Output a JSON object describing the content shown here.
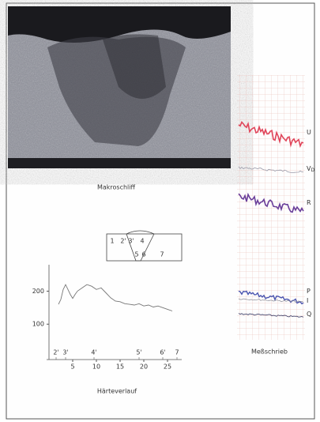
{
  "photo": {
    "caption": "Makroschliff"
  },
  "weld_sketch": {
    "labels": [
      "1",
      "2'",
      "3'",
      "4",
      "5",
      "6",
      "7"
    ]
  },
  "strip_chart": {
    "caption": "Meßschrieb",
    "channels": [
      {
        "label": "U"
      },
      {
        "label": "V",
        "sub": "D"
      },
      {
        "label": "R"
      },
      {
        "label": "P"
      },
      {
        "label": "I"
      },
      {
        "label": "Q"
      }
    ]
  },
  "chart_data": {
    "type": "line",
    "title": "Härteverlauf",
    "x": [
      2,
      2.5,
      3,
      3.5,
      4,
      4.5,
      5,
      5.5,
      6,
      7,
      8,
      9,
      10,
      11,
      12,
      13,
      14,
      15,
      16,
      17,
      18,
      19,
      20,
      21,
      22,
      23,
      24,
      25,
      26
    ],
    "values": [
      160,
      175,
      205,
      220,
      205,
      190,
      178,
      190,
      200,
      210,
      220,
      215,
      205,
      210,
      195,
      180,
      170,
      168,
      162,
      160,
      158,
      162,
      155,
      158,
      152,
      155,
      150,
      145,
      140
    ],
    "color": "#777777",
    "xlim": [
      0,
      28
    ],
    "ylim": [
      0,
      280
    ],
    "xticks": [
      5,
      10,
      15,
      20,
      25
    ],
    "yticks": [
      100,
      200
    ],
    "markers": [
      {
        "value": 1.5,
        "label": "2'"
      },
      {
        "value": 3.5,
        "label": "3'"
      },
      {
        "value": 9.5,
        "label": "4'"
      },
      {
        "value": 19,
        "label": "5'"
      },
      {
        "value": 24,
        "label": "6'"
      },
      {
        "value": 27,
        "label": "7"
      }
    ]
  }
}
